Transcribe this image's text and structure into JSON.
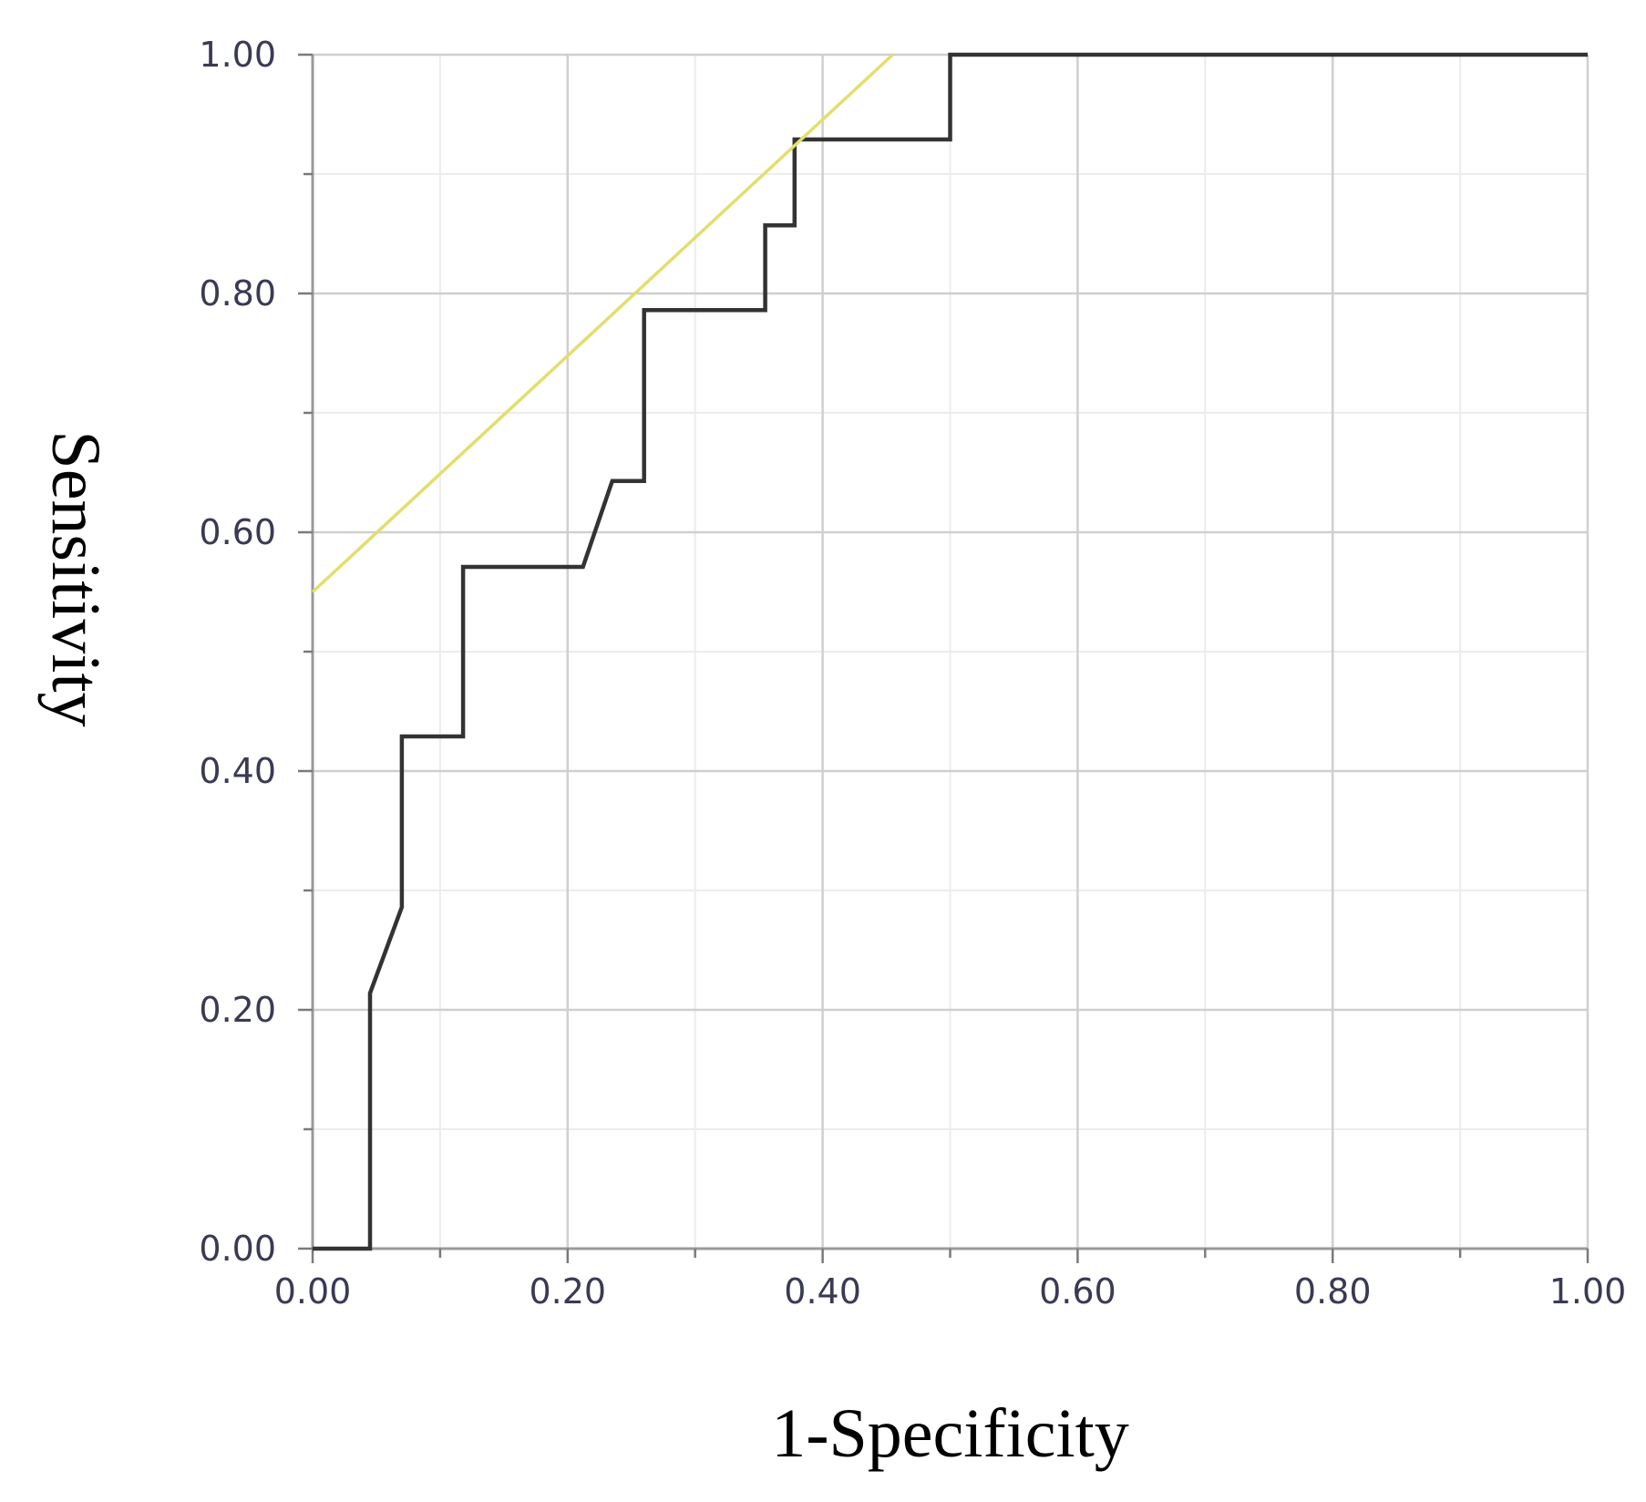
{
  "chart_data": {
    "type": "line",
    "title": "",
    "xlabel": "1-Specificity",
    "ylabel": "Sensitivity",
    "xlim": [
      0,
      1
    ],
    "ylim": [
      0,
      1
    ],
    "x_ticks": [
      "0.00",
      "0.20",
      "0.40",
      "0.60",
      "0.80",
      "1.00"
    ],
    "y_ticks": [
      "0.00",
      "0.20",
      "0.40",
      "0.60",
      "0.80",
      "1.00"
    ],
    "grid": true,
    "legend": "none",
    "series": [
      {
        "color": "#333333",
        "x": [
          0.0,
          0.045,
          0.045,
          0.07,
          0.07,
          0.118,
          0.118,
          0.212,
          0.235,
          0.26,
          0.26,
          0.355,
          0.355,
          0.378,
          0.378,
          0.5,
          0.5,
          1.0
        ],
        "y": [
          0.0,
          0.0,
          0.214,
          0.286,
          0.429,
          0.429,
          0.571,
          0.571,
          0.643,
          0.643,
          0.786,
          0.786,
          0.857,
          0.857,
          0.929,
          0.929,
          1.0,
          1.0
        ]
      },
      {
        "color": "#e3de6e",
        "x": [
          0.0,
          0.455
        ],
        "y": [
          0.55,
          1.0
        ]
      }
    ]
  }
}
